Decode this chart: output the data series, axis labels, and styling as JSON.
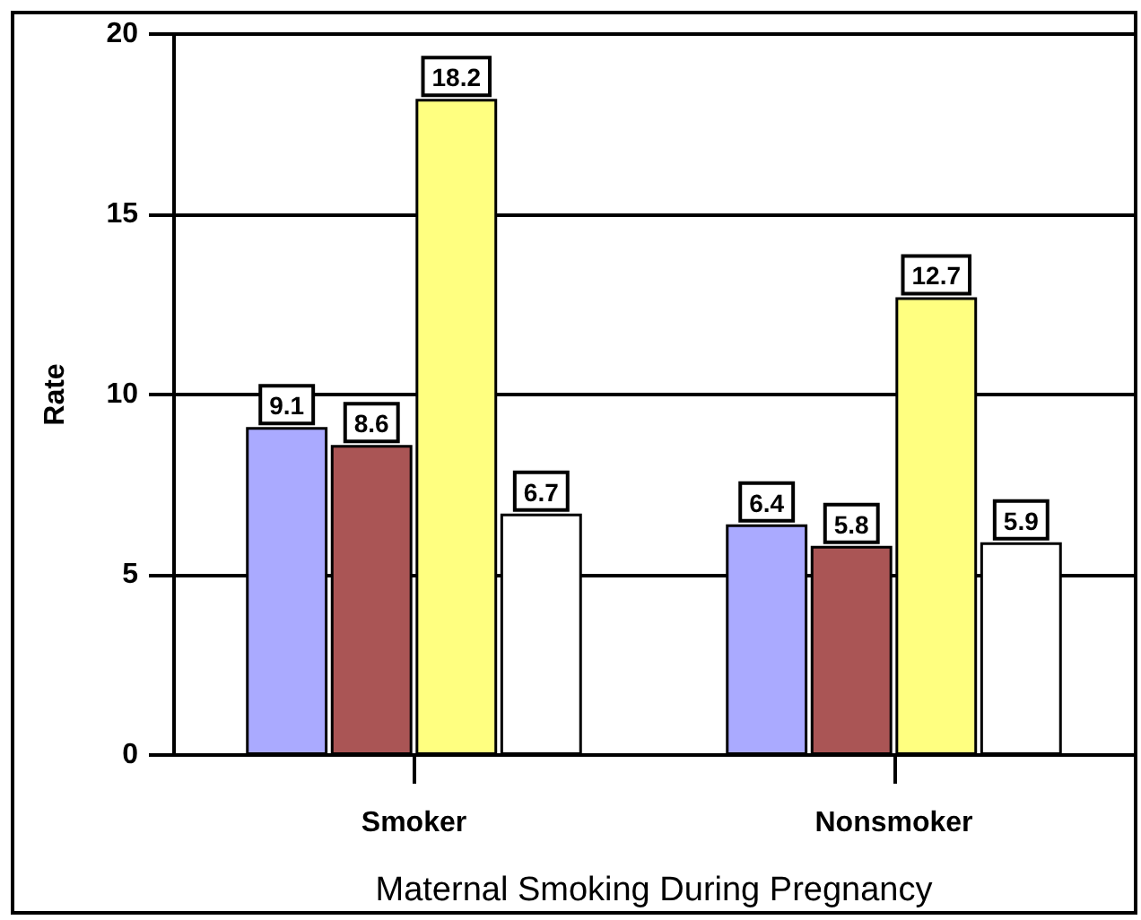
{
  "chart_data": {
    "type": "bar",
    "xlabel": "Maternal Smoking During Pregnancy",
    "ylabel": "Rate",
    "categories": [
      "Smoker",
      "Nonsmoker"
    ],
    "series": [
      {
        "color": "#aaaaff",
        "values": [
          9.1,
          6.4
        ]
      },
      {
        "color": "#aa5555",
        "values": [
          8.6,
          5.8
        ]
      },
      {
        "color": "#ffff80",
        "values": [
          18.2,
          12.7
        ]
      },
      {
        "color": "#ffffff",
        "values": [
          6.7,
          5.9
        ]
      }
    ],
    "ylim": [
      0,
      20
    ],
    "yticks": [
      0,
      5,
      10,
      15,
      20
    ],
    "grid": "y",
    "data_labels": true
  }
}
